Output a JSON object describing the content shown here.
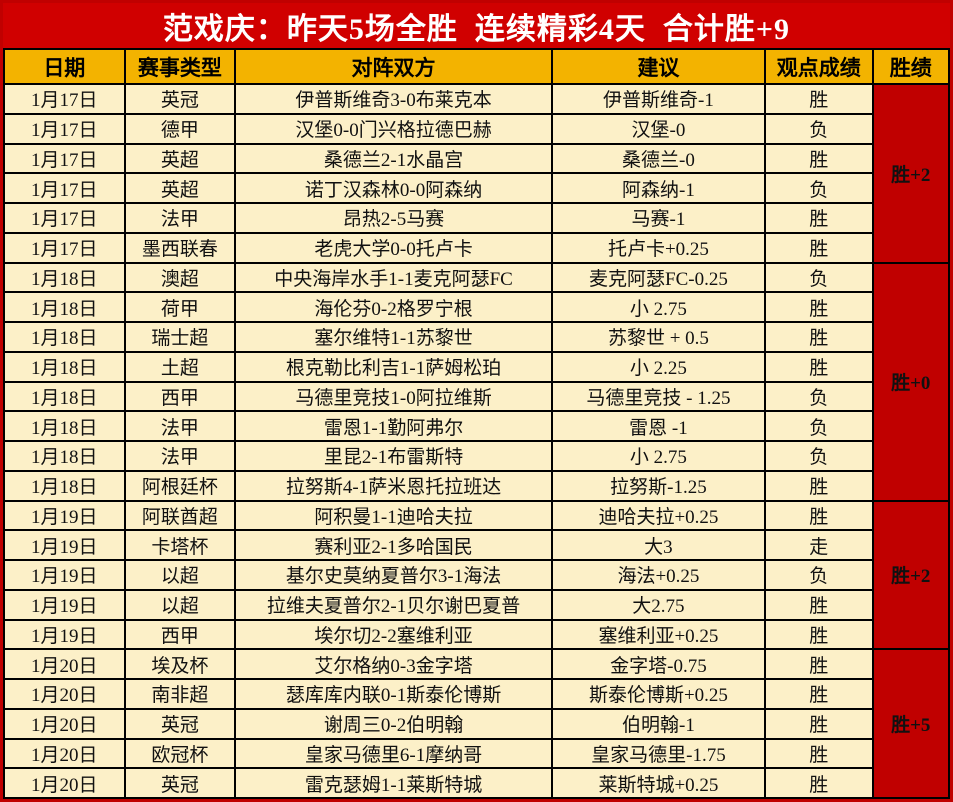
{
  "banner": {
    "title": "范戏庆：昨天5场全胜  连续精彩4天  合计胜+9"
  },
  "colors": {
    "banner_red": "#d00000",
    "record_red": "#c00000",
    "header_gold": "#f3b300",
    "cell_cream": "#fcf0c8",
    "win_text_red": "#ee3124",
    "lose_text_black": "#111111",
    "border_black": "#000000",
    "banner_text_white": "#ffffff"
  },
  "table": {
    "headers": [
      "日期",
      "赛事类型",
      "对阵双方",
      "建议",
      "观点成绩",
      "胜绩"
    ],
    "groups": [
      {
        "record": "胜+2",
        "rows": [
          {
            "date": "1月17日",
            "league": "英冠",
            "match": "伊普斯维奇3-0布莱克本",
            "tip": "伊普斯维奇-1",
            "result": "胜",
            "result_type": "win"
          },
          {
            "date": "1月17日",
            "league": "德甲",
            "match": "汉堡0-0门兴格拉德巴赫",
            "tip": "汉堡-0",
            "result": "负",
            "result_type": "lose"
          },
          {
            "date": "1月17日",
            "league": "英超",
            "match": "桑德兰2-1水晶宫",
            "tip": "桑德兰-0",
            "result": "胜",
            "result_type": "win"
          },
          {
            "date": "1月17日",
            "league": "英超",
            "match": "诺丁汉森林0-0阿森纳",
            "tip": "阿森纳-1",
            "result": "负",
            "result_type": "lose"
          },
          {
            "date": "1月17日",
            "league": "法甲",
            "match": "昂热2-5马赛",
            "tip": "马赛-1",
            "result": "胜",
            "result_type": "win"
          },
          {
            "date": "1月17日",
            "league": "墨西联春",
            "match": "老虎大学0-0托卢卡",
            "tip": "托卢卡+0.25",
            "result": "胜",
            "result_type": "win"
          }
        ]
      },
      {
        "record": "胜+0",
        "rows": [
          {
            "date": "1月18日",
            "league": "澳超",
            "match": "中央海岸水手1-1麦克阿瑟FC",
            "tip": "麦克阿瑟FC-0.25",
            "result": "负",
            "result_type": "lose"
          },
          {
            "date": "1月18日",
            "league": "荷甲",
            "match": "海伦芬0-2格罗宁根",
            "tip": "小 2.75",
            "result": "胜",
            "result_type": "win"
          },
          {
            "date": "1月18日",
            "league": "瑞士超",
            "match": "塞尔维特1-1苏黎世",
            "tip": "苏黎世 + 0.5",
            "result": "胜",
            "result_type": "win"
          },
          {
            "date": "1月18日",
            "league": "土超",
            "match": "根克勒比利吉1-1萨姆松珀",
            "tip": "小 2.25",
            "result": "胜",
            "result_type": "win"
          },
          {
            "date": "1月18日",
            "league": "西甲",
            "match": "马德里竞技1-0阿拉维斯",
            "tip": "马德里竞技 - 1.25",
            "result": "负",
            "result_type": "lose"
          },
          {
            "date": "1月18日",
            "league": "法甲",
            "match": "雷恩1-1勤阿弗尔",
            "tip": "雷恩 -1",
            "result": "负",
            "result_type": "lose"
          },
          {
            "date": "1月18日",
            "league": "法甲",
            "match": "里昆2-1布雷斯特",
            "tip": "小 2.75",
            "result": "负",
            "result_type": "lose"
          },
          {
            "date": "1月18日",
            "league": "阿根廷杯",
            "match": "拉努斯4-1萨米恩托拉班达",
            "tip": "拉努斯-1.25",
            "result": "胜",
            "result_type": "win"
          }
        ]
      },
      {
        "record": "胜+2",
        "rows": [
          {
            "date": "1月19日",
            "league": "阿联酋超",
            "match": "阿积曼1-1迪哈夫拉",
            "tip": "迪哈夫拉+0.25",
            "result": "胜",
            "result_type": "win"
          },
          {
            "date": "1月19日",
            "league": "卡塔杯",
            "match": "赛利亚2-1多哈国民",
            "tip": "大3",
            "result": "走",
            "result_type": "push"
          },
          {
            "date": "1月19日",
            "league": "以超",
            "match": "基尔史莫纳夏普尔3-1海法",
            "tip": "海法+0.25",
            "result": "负",
            "result_type": "lose"
          },
          {
            "date": "1月19日",
            "league": "以超",
            "match": "拉维夫夏普尔2-1贝尔谢巴夏普",
            "tip": "大2.75",
            "result": "胜",
            "result_type": "win"
          },
          {
            "date": "1月19日",
            "league": "西甲",
            "match": "埃尔切2-2塞维利亚",
            "tip": "塞维利亚+0.25",
            "result": "胜",
            "result_type": "win"
          }
        ]
      },
      {
        "record": "胜+5",
        "rows": [
          {
            "date": "1月20日",
            "league": "埃及杯",
            "match": "艾尔格纳0-3金字塔",
            "tip": "金字塔-0.75",
            "result": "胜",
            "result_type": "win"
          },
          {
            "date": "1月20日",
            "league": "南非超",
            "match": "瑟库库内联0-1斯泰伦博斯",
            "tip": "斯泰伦博斯+0.25",
            "result": "胜",
            "result_type": "win"
          },
          {
            "date": "1月20日",
            "league": "英冠",
            "match": "谢周三0-2伯明翰",
            "tip": "伯明翰-1",
            "result": "胜",
            "result_type": "win"
          },
          {
            "date": "1月20日",
            "league": "欧冠杯",
            "match": "皇家马德里6-1摩纳哥",
            "tip": "皇家马德里-1.75",
            "result": "胜",
            "result_type": "win"
          },
          {
            "date": "1月20日",
            "league": "英冠",
            "match": "雷克瑟姆1-1莱斯特城",
            "tip": "莱斯特城+0.25",
            "result": "胜",
            "result_type": "win"
          }
        ]
      }
    ]
  }
}
